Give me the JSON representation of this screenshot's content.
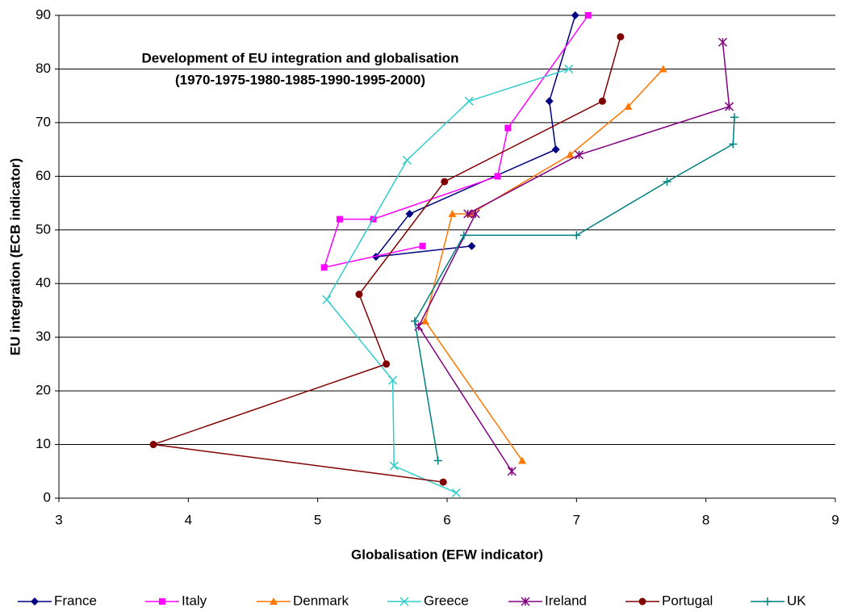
{
  "chart_data": {
    "type": "line",
    "title": [
      "Development of EU integration and globalisation",
      "(1970-1975-1980-1985-1990-1995-2000)"
    ],
    "x_label": "Globalisation (EFW indicator)",
    "y_label": "EU integration (ECB indicator)",
    "xlim": [
      3,
      9
    ],
    "xticks": [
      3,
      4,
      5,
      6,
      7,
      8,
      9
    ],
    "ylim": [
      0,
      90
    ],
    "yticks": [
      0,
      10,
      20,
      30,
      40,
      50,
      60,
      70,
      80,
      90
    ],
    "grid": true,
    "legend": "bottom",
    "series": [
      {
        "name": "France",
        "color": "#000080",
        "marker": "diamond",
        "x": [
          6.19,
          5.45,
          5.71,
          6.84,
          6.79,
          6.99
        ],
        "values": [
          47,
          45,
          53,
          65,
          74,
          90
        ]
      },
      {
        "name": "Italy",
        "color": "#ff00ff",
        "marker": "square",
        "x": [
          5.81,
          5.05,
          5.17,
          5.43,
          6.39,
          6.47,
          7.09
        ],
        "values": [
          47,
          43,
          52,
          52,
          60,
          69,
          90
        ]
      },
      {
        "name": "Denmark",
        "color": "#ff7700",
        "marker": "triangle",
        "x": [
          6.58,
          5.83,
          6.04,
          6.18,
          6.95,
          7.4,
          7.67
        ],
        "values": [
          7,
          33,
          53,
          53,
          64,
          73,
          80
        ]
      },
      {
        "name": "Greece",
        "color": "#33cccc",
        "marker": "x",
        "x": [
          6.07,
          5.59,
          5.58,
          5.07,
          5.69,
          6.17,
          6.94
        ],
        "values": [
          1,
          6,
          22,
          37,
          63,
          74,
          80
        ]
      },
      {
        "name": "Ireland",
        "color": "#800080",
        "marker": "star",
        "x": [
          6.5,
          5.78,
          6.22,
          6.16,
          7.02,
          8.18,
          8.13
        ],
        "values": [
          5,
          32,
          53,
          53,
          64,
          73,
          85
        ]
      },
      {
        "name": "Portugal",
        "color": "#800000",
        "marker": "circle",
        "x": [
          5.97,
          3.73,
          5.53,
          5.32,
          5.98,
          7.2,
          7.34
        ],
        "values": [
          3,
          10,
          25,
          38,
          59,
          74,
          86
        ]
      },
      {
        "name": "UK",
        "color": "#008080",
        "marker": "plus",
        "x": [
          5.93,
          5.75,
          6.13,
          7.0,
          7.7,
          8.21,
          8.22
        ],
        "values": [
          7,
          33,
          49,
          49,
          59,
          66,
          71
        ]
      }
    ]
  }
}
